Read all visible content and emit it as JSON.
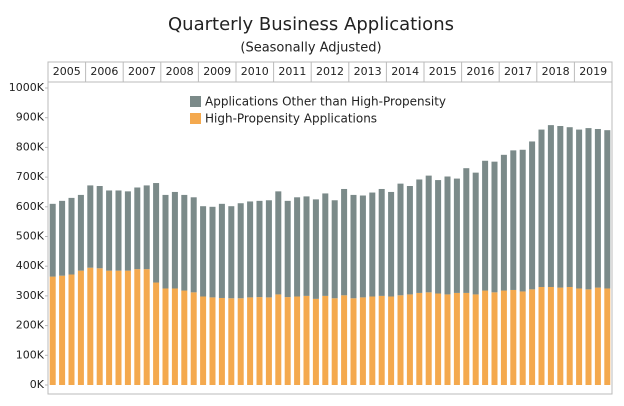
{
  "chart_data": {
    "type": "stacked_bar",
    "title": "Quarterly Business Applications",
    "subtitle": "(Seasonally Adjusted)",
    "years": [
      2005,
      2006,
      2007,
      2008,
      2009,
      2010,
      2011,
      2012,
      2013,
      2014,
      2015,
      2016,
      2017,
      2018,
      2019
    ],
    "series": [
      {
        "name": "Applications Other than High-Propensity",
        "color": "#7b8a89",
        "values": [
          245,
          252,
          258,
          255,
          277,
          277,
          270,
          270,
          267,
          275,
          282,
          335,
          315,
          325,
          322,
          320,
          304,
          305,
          317,
          310,
          320,
          323,
          324,
          327,
          347,
          324,
          334,
          335,
          335,
          345,
          330,
          358,
          348,
          343,
          350,
          360,
          352,
          376,
          365,
          382,
          393,
          382,
          397,
          385,
          420,
          410,
          437,
          440,
          457,
          470,
          477,
          498,
          530,
          545,
          544,
          538,
          535,
          543,
          534,
          533
        ]
      },
      {
        "name": "High-Propensity Applications",
        "color": "#f4a94e",
        "values": [
          365,
          368,
          372,
          385,
          395,
          393,
          385,
          385,
          385,
          390,
          390,
          345,
          325,
          325,
          318,
          312,
          298,
          295,
          293,
          292,
          292,
          295,
          296,
          295,
          305,
          296,
          298,
          300,
          290,
          300,
          292,
          302,
          292,
          295,
          298,
          300,
          298,
          302,
          305,
          310,
          312,
          308,
          305,
          310,
          310,
          305,
          318,
          312,
          318,
          320,
          315,
          322,
          330,
          330,
          328,
          330,
          325,
          322,
          328,
          325
        ]
      }
    ],
    "ylim": [
      0,
      1000
    ],
    "yticks": [
      {
        "value": 0,
        "label": "0K"
      },
      {
        "value": 100,
        "label": "100K"
      },
      {
        "value": 200,
        "label": "200K"
      },
      {
        "value": 300,
        "label": "300K"
      },
      {
        "value": 400,
        "label": "400K"
      },
      {
        "value": 500,
        "label": "500K"
      },
      {
        "value": 600,
        "label": "600K"
      },
      {
        "value": 700,
        "label": "700K"
      },
      {
        "value": 800,
        "label": "800K"
      },
      {
        "value": 900,
        "label": "900K"
      },
      {
        "value": 1000,
        "label": "1000K"
      }
    ],
    "legend": "top"
  }
}
